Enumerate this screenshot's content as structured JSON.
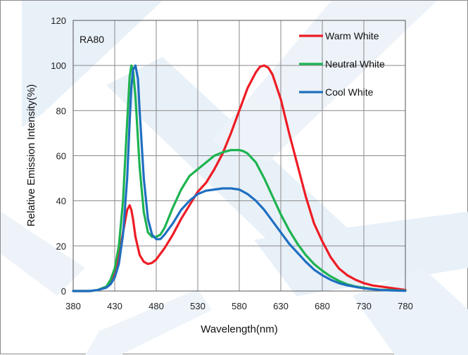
{
  "chart_data": {
    "type": "line",
    "title": "",
    "annotation": "RA80",
    "xlabel": "Wavelength(nm)",
    "ylabel": "Relative Emission Intensity(%)",
    "xlim": [
      380,
      780
    ],
    "ylim": [
      0,
      120
    ],
    "xticks": [
      380,
      430,
      480,
      530,
      580,
      630,
      680,
      730,
      780
    ],
    "yticks": [
      0,
      20,
      40,
      60,
      80,
      100,
      120
    ],
    "grid": true,
    "legend_position": "top-right",
    "series": [
      {
        "name": "Warm White",
        "color": "#ee1c24",
        "x": [
          380,
          400,
          410,
          420,
          425,
          430,
          435,
          440,
          445,
          448,
          450,
          452,
          455,
          460,
          465,
          470,
          475,
          480,
          490,
          500,
          510,
          520,
          530,
          540,
          550,
          560,
          570,
          580,
          590,
          600,
          605,
          610,
          615,
          620,
          630,
          640,
          650,
          660,
          670,
          680,
          690,
          700,
          710,
          720,
          730,
          740,
          750,
          760,
          770,
          780
        ],
        "y": [
          0,
          0,
          0.5,
          2,
          4,
          8,
          15,
          26,
          36,
          38,
          36,
          32,
          24,
          16,
          13,
          12,
          12.5,
          14,
          19,
          25,
          32,
          38,
          44,
          48,
          54,
          61,
          70,
          80,
          90,
          97,
          99.5,
          100,
          99,
          96,
          85,
          70,
          56,
          42,
          30,
          22,
          15,
          10,
          7,
          5,
          3.5,
          2.5,
          2,
          1.5,
          1,
          0.5
        ]
      },
      {
        "name": "Neutral White",
        "color": "#1db350",
        "x": [
          380,
          400,
          410,
          420,
          425,
          430,
          435,
          440,
          445,
          448,
          450,
          452,
          455,
          460,
          465,
          470,
          475,
          480,
          485,
          490,
          500,
          510,
          520,
          530,
          540,
          550,
          560,
          570,
          580,
          585,
          590,
          600,
          610,
          620,
          630,
          640,
          650,
          660,
          670,
          680,
          690,
          700,
          710,
          720,
          730,
          740,
          750,
          760,
          770,
          780
        ],
        "y": [
          0,
          0,
          0.5,
          2,
          5,
          10,
          20,
          40,
          75,
          95,
          100,
          98,
          86,
          55,
          35,
          26,
          24,
          24,
          25,
          28,
          37,
          45,
          51,
          54,
          57,
          60,
          61.5,
          62.5,
          62.5,
          62,
          61,
          57,
          50,
          42,
          34,
          27,
          21,
          16,
          12,
          9,
          6.5,
          4.5,
          3,
          2,
          1.5,
          1,
          0.5,
          0.5,
          0.3,
          0.2
        ]
      },
      {
        "name": "Cool White",
        "color": "#1f6fc1",
        "x": [
          380,
          400,
          410,
          420,
          425,
          430,
          435,
          440,
          445,
          448,
          450,
          452,
          455,
          458,
          460,
          465,
          470,
          475,
          480,
          485,
          490,
          500,
          510,
          520,
          530,
          540,
          550,
          560,
          570,
          580,
          590,
          600,
          610,
          620,
          630,
          640,
          650,
          660,
          670,
          680,
          690,
          700,
          710,
          720,
          730,
          740,
          750,
          760,
          770,
          780
        ],
        "y": [
          0,
          0,
          0.5,
          1.5,
          3,
          6,
          12,
          25,
          50,
          75,
          90,
          98,
          100,
          94,
          80,
          50,
          32,
          25,
          23,
          23,
          25,
          30,
          36,
          40,
          43,
          44.5,
          45,
          45.5,
          45.5,
          45,
          43,
          40,
          36,
          31,
          26,
          21,
          17,
          13,
          9.5,
          7,
          5,
          3.5,
          2.5,
          1.8,
          1.2,
          0.8,
          0.5,
          0.3,
          0.2,
          0.1
        ]
      }
    ]
  }
}
